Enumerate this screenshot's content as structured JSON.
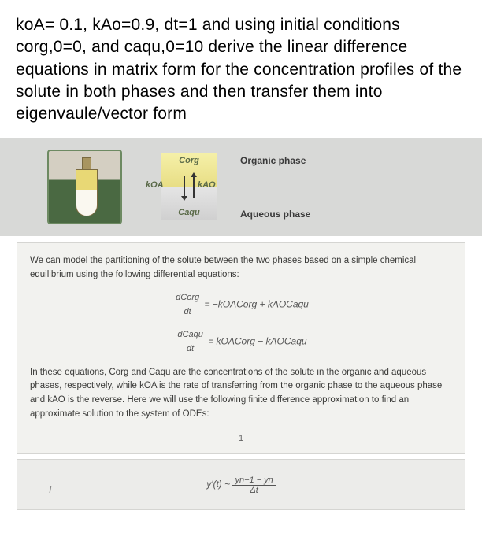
{
  "question": {
    "text": "koA= 0.1, kAo=0.9, dt=1 and using initial conditions corg,0=0, and caqu,0=10 derive the linear difference equations in matrix form for the concentration profiles of the solute in both phases and then transfer them into eigenvaule/vector form"
  },
  "diagram": {
    "c_org": "Corg",
    "c_aqu": "Caqu",
    "k_oa": "kOA",
    "k_ao": "kAO",
    "organic_label": "Organic phase",
    "aqueous_label": "Aqueous phase",
    "colors": {
      "section_bg": "#d8d9d7",
      "org_top": "#f5f0a8",
      "org_bottom": "#e8de85",
      "aqu_top": "#e5e5e5",
      "aqu_bottom": "#d0d0d0",
      "flask_border": "#6d8a62",
      "label_color": "#5a6a48"
    }
  },
  "content": {
    "intro": "We can model the partitioning of the solute between the two phases based on a simple chemical equilibrium using the following differential equations:",
    "eq1": {
      "lhs_num": "dCorg",
      "lhs_den": "dt",
      "rhs": "= −kOACorg + kAOCaqu"
    },
    "eq2": {
      "lhs_num": "dCaqu",
      "lhs_den": "dt",
      "rhs": "= kOACorg − kAOCaqu"
    },
    "explanation": "In these equations, Corg and Caqu are the concentrations of the solute in the organic and aqueous phases, respectively, while kOA is the rate of transferring from the organic phase to the aqueous phase and kAO is the reverse. Here we will use the following finite difference approximation to find an approximate solution to the system of ODEs:",
    "page_number": "1"
  },
  "bottom": {
    "marker": "I",
    "approx": {
      "prefix": "y'(t) ~ ",
      "num": "yn+1 − yn",
      "den": "Δt"
    }
  }
}
